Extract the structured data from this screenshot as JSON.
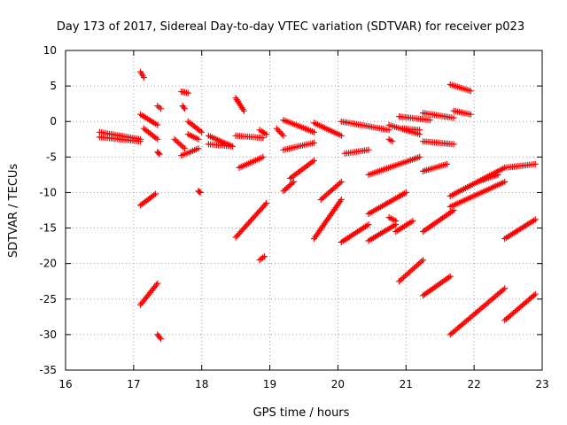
{
  "chart_data": {
    "type": "scatter",
    "title": "Day 173 of 2017, Sidereal Day-to-day VTEC variation (SDTVAR) for receiver p023",
    "xlabel": "GPS time / hours",
    "ylabel": "SDTVAR / TECUs",
    "xlim": [
      16,
      23
    ],
    "ylim": [
      -35,
      10
    ],
    "x_ticks": [
      16,
      17,
      18,
      19,
      20,
      21,
      22,
      23
    ],
    "y_ticks": [
      10,
      5,
      0,
      -5,
      -10,
      -15,
      -20,
      -25,
      -30,
      -35
    ],
    "grid": true,
    "marker": "+",
    "color": "#ff0000",
    "segments": [
      {
        "x": [
          16.5,
          17.1
        ],
        "y": [
          -1.5,
          -2.5
        ]
      },
      {
        "x": [
          16.5,
          17.1
        ],
        "y": [
          -2.2,
          -2.8
        ]
      },
      {
        "x": [
          17.1,
          17.15
        ],
        "y": [
          7.0,
          6.2
        ]
      },
      {
        "x": [
          17.1,
          17.35
        ],
        "y": [
          1.0,
          -0.5
        ]
      },
      {
        "x": [
          17.15,
          17.35
        ],
        "y": [
          -1.0,
          -2.5
        ]
      },
      {
        "x": [
          17.35,
          17.4
        ],
        "y": [
          2.2,
          1.8
        ]
      },
      {
        "x": [
          17.35,
          17.38
        ],
        "y": [
          -4.3,
          -4.6
        ]
      },
      {
        "x": [
          17.1,
          17.32
        ],
        "y": [
          -11.8,
          -10.2
        ]
      },
      {
        "x": [
          17.1,
          17.35
        ],
        "y": [
          -25.8,
          -22.8
        ]
      },
      {
        "x": [
          17.35,
          17.4
        ],
        "y": [
          -30.0,
          -30.6
        ]
      },
      {
        "x": [
          17.7,
          17.8
        ],
        "y": [
          4.2,
          4.0
        ]
      },
      {
        "x": [
          17.72,
          17.75
        ],
        "y": [
          2.2,
          1.8
        ]
      },
      {
        "x": [
          17.6,
          17.75
        ],
        "y": [
          -2.5,
          -3.8
        ]
      },
      {
        "x": [
          17.8,
          18.0
        ],
        "y": [
          0.0,
          -1.5
        ]
      },
      {
        "x": [
          17.8,
          17.95
        ],
        "y": [
          -1.8,
          -2.5
        ]
      },
      {
        "x": [
          17.7,
          17.95
        ],
        "y": [
          -4.8,
          -3.8
        ]
      },
      {
        "x": [
          17.95,
          17.98
        ],
        "y": [
          -9.8,
          -10.0
        ]
      },
      {
        "x": [
          18.1,
          18.45
        ],
        "y": [
          -2.0,
          -3.5
        ]
      },
      {
        "x": [
          18.1,
          18.45
        ],
        "y": [
          -3.2,
          -3.5
        ]
      },
      {
        "x": [
          18.5,
          18.62
        ],
        "y": [
          3.3,
          1.5
        ]
      },
      {
        "x": [
          18.5,
          18.9
        ],
        "y": [
          -2.0,
          -2.3
        ]
      },
      {
        "x": [
          18.55,
          18.9
        ],
        "y": [
          -6.5,
          -5.0
        ]
      },
      {
        "x": [
          18.85,
          18.95
        ],
        "y": [
          -1.2,
          -1.8
        ]
      },
      {
        "x": [
          18.5,
          18.95
        ],
        "y": [
          -16.3,
          -11.5
        ]
      },
      {
        "x": [
          18.85,
          18.92
        ],
        "y": [
          -19.5,
          -19.0
        ]
      },
      {
        "x": [
          19.1,
          19.2
        ],
        "y": [
          -1.0,
          -2.0
        ]
      },
      {
        "x": [
          19.2,
          19.65
        ],
        "y": [
          0.2,
          -1.5
        ]
      },
      {
        "x": [
          19.2,
          19.65
        ],
        "y": [
          -4.0,
          -3.0
        ]
      },
      {
        "x": [
          19.3,
          19.65
        ],
        "y": [
          -8.0,
          -5.5
        ]
      },
      {
        "x": [
          19.2,
          19.35
        ],
        "y": [
          -9.8,
          -8.5
        ]
      },
      {
        "x": [
          19.65,
          20.05
        ],
        "y": [
          -0.2,
          -2.0
        ]
      },
      {
        "x": [
          19.75,
          20.05
        ],
        "y": [
          -11.0,
          -8.5
        ]
      },
      {
        "x": [
          19.65,
          20.05
        ],
        "y": [
          -16.5,
          -11.0
        ]
      },
      {
        "x": [
          20.05,
          20.75
        ],
        "y": [
          0.0,
          -1.2
        ]
      },
      {
        "x": [
          20.1,
          20.45
        ],
        "y": [
          -4.5,
          -4.0
        ]
      },
      {
        "x": [
          20.05,
          20.45
        ],
        "y": [
          -17.0,
          -14.5
        ]
      },
      {
        "x": [
          20.45,
          21.2
        ],
        "y": [
          -7.5,
          -5.0
        ]
      },
      {
        "x": [
          20.45,
          21.0
        ],
        "y": [
          -13.0,
          -10.0
        ]
      },
      {
        "x": [
          20.45,
          20.85
        ],
        "y": [
          -16.8,
          -14.5
        ]
      },
      {
        "x": [
          20.75,
          20.85
        ],
        "y": [
          -13.5,
          -14.0
        ]
      },
      {
        "x": [
          20.75,
          21.2
        ],
        "y": [
          -0.5,
          -1.8
        ]
      },
      {
        "x": [
          20.75,
          20.8
        ],
        "y": [
          -2.5,
          -2.8
        ]
      },
      {
        "x": [
          20.95,
          21.2
        ],
        "y": [
          -1.0,
          -1.2
        ]
      },
      {
        "x": [
          20.9,
          21.35
        ],
        "y": [
          0.7,
          0.2
        ]
      },
      {
        "x": [
          20.85,
          21.1
        ],
        "y": [
          -15.5,
          -14.0
        ]
      },
      {
        "x": [
          20.9,
          21.25
        ],
        "y": [
          -22.5,
          -19.5
        ]
      },
      {
        "x": [
          21.25,
          21.7
        ],
        "y": [
          1.2,
          0.5
        ]
      },
      {
        "x": [
          21.25,
          21.7
        ],
        "y": [
          -2.8,
          -3.2
        ]
      },
      {
        "x": [
          21.25,
          21.6
        ],
        "y": [
          -7.0,
          -6.0
        ]
      },
      {
        "x": [
          21.25,
          21.7
        ],
        "y": [
          -15.5,
          -12.5
        ]
      },
      {
        "x": [
          21.25,
          21.65
        ],
        "y": [
          -24.5,
          -21.8
        ]
      },
      {
        "x": [
          21.65,
          21.95
        ],
        "y": [
          5.2,
          4.3
        ]
      },
      {
        "x": [
          21.7,
          21.95
        ],
        "y": [
          1.5,
          1.0
        ]
      },
      {
        "x": [
          21.65,
          22.45
        ],
        "y": [
          -10.5,
          -6.5
        ]
      },
      {
        "x": [
          21.65,
          22.45
        ],
        "y": [
          -12.0,
          -8.5
        ]
      },
      {
        "x": [
          22.05,
          22.35
        ],
        "y": [
          -8.5,
          -7.5
        ]
      },
      {
        "x": [
          22.45,
          22.9
        ],
        "y": [
          -6.5,
          -6.0
        ]
      },
      {
        "x": [
          22.45,
          22.9
        ],
        "y": [
          -16.5,
          -13.8
        ]
      },
      {
        "x": [
          21.65,
          22.45
        ],
        "y": [
          -30.0,
          -23.5
        ]
      },
      {
        "x": [
          22.45,
          22.9
        ],
        "y": [
          -28.0,
          -24.3
        ]
      }
    ]
  }
}
